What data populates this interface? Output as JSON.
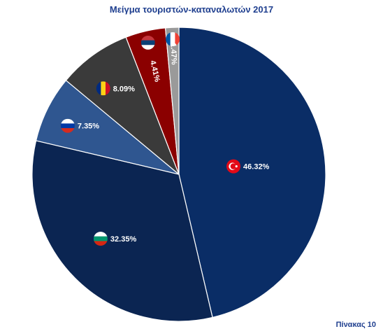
{
  "chart_data": {
    "type": "pie",
    "title": "Μείγμα τουριστών-καταναλωτών 2017",
    "slices": [
      {
        "label": "46.32%",
        "value": 46.32,
        "color": "#0a2d66",
        "flag": "turkey-flag"
      },
      {
        "label": "32.35%",
        "value": 32.35,
        "color": "#0b2552",
        "flag": "bulgaria-flag"
      },
      {
        "label": "7.35%",
        "value": 7.35,
        "color": "#2f5690",
        "flag": "russia-flag"
      },
      {
        "label": "8.09%",
        "value": 8.09,
        "color": "#3a3a3a",
        "flag": "romania-flag"
      },
      {
        "label": "4.41%",
        "value": 4.41,
        "color": "#8b0000",
        "flag": "serbia-flag"
      },
      {
        "label": "1.47%",
        "value": 1.47,
        "color": "#9a9a9a",
        "flag": "france-flag"
      }
    ]
  },
  "footer": {
    "label": "Πίνακας 10"
  }
}
